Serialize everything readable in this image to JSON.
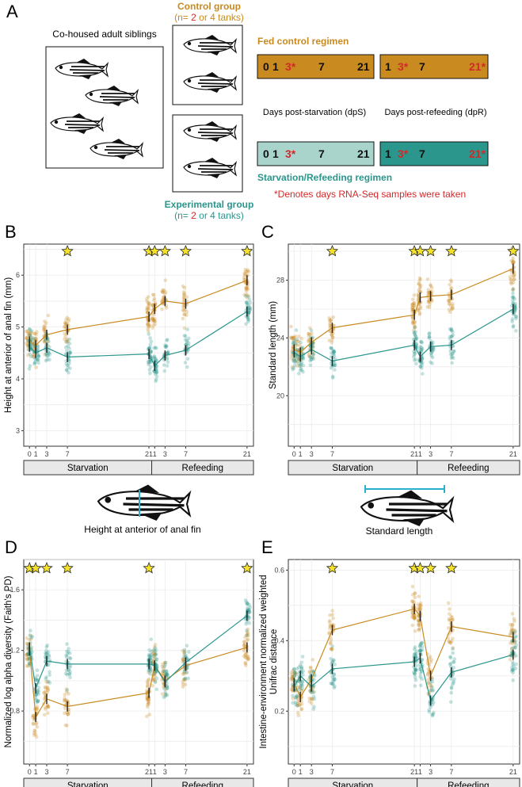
{
  "colors": {
    "control": "#c98a1f",
    "experimental": "#2a968c",
    "exp_light": "#a8d4cc",
    "experimental_dark": "#22877e",
    "red": "#d22a2a",
    "star": "#f3e02a",
    "strip": "#e8e8e8"
  },
  "panelA": {
    "letter": "A",
    "cohoused_label": "Co-housed adult siblings",
    "control_title": "Control group",
    "control_n_prefix": "(n= ",
    "control_n_red": "2",
    "control_n_suffix": " or 4 tanks)",
    "exp_title": "Experimental group",
    "exp_n_prefix": "(n= ",
    "exp_n_red": "2",
    "exp_n_suffix": " or 4 tanks)",
    "fed_regimen": "Fed control regimen",
    "starv_regimen": "Starvation/Refeeding regimen",
    "dps_label": "Days post-starvation (dpS)",
    "dpr_label": "Days post-refeeding (dpR)",
    "note": "*Denotes days RNA-Seq samples were taken",
    "bar_days_1": [
      "0",
      "1",
      "3*",
      "7",
      "21"
    ],
    "bar_days_2": [
      "1",
      "3*",
      "7",
      "21*"
    ]
  },
  "strip_labels": [
    "Starvation",
    "Refeeding"
  ],
  "x_ticks": [
    "0",
    "1",
    "3",
    "7",
    "21",
    "1",
    "3",
    "7",
    "21"
  ],
  "fish_labels": {
    "height": "Height at anterior of anal fin",
    "length": "Standard length"
  },
  "chart_data": [
    {
      "panel": "B",
      "type": "line",
      "ylabel": "Height at anterior of anal fin (mm)",
      "yticks": [
        3,
        4,
        5,
        6
      ],
      "ylim": [
        2.7,
        6.6
      ],
      "x": [
        "0 dpS",
        "1 dpS",
        "3 dpS",
        "7 dpS",
        "21 dpS",
        "1 dpR",
        "3 dpR",
        "7 dpR",
        "21 dpR"
      ],
      "stars_at": [
        3,
        4,
        5,
        6,
        7,
        8
      ],
      "series": [
        {
          "name": "Control",
          "values": [
            4.72,
            4.65,
            4.85,
            4.95,
            5.2,
            5.35,
            5.5,
            5.45,
            5.9
          ]
        },
        {
          "name": "Experimental",
          "values": [
            4.62,
            4.5,
            4.6,
            4.42,
            4.48,
            4.25,
            4.45,
            4.55,
            5.3
          ]
        }
      ]
    },
    {
      "panel": "C",
      "type": "line",
      "ylabel": "Standard length (mm)",
      "yticks": [
        20,
        24,
        28
      ],
      "ylim": [
        16.5,
        30.5
      ],
      "x": [
        "0 dpS",
        "1 dpS",
        "3 dpS",
        "7 dpS",
        "21 dpS",
        "1 dpR",
        "3 dpR",
        "7 dpR",
        "21 dpR"
      ],
      "stars_at": [
        3,
        4,
        5,
        6,
        7,
        8
      ],
      "series": [
        {
          "name": "Control",
          "values": [
            23.2,
            23.0,
            23.7,
            24.7,
            25.6,
            26.8,
            26.9,
            27.0,
            28.8
          ]
        },
        {
          "name": "Experimental",
          "values": [
            23.0,
            22.7,
            23.2,
            22.4,
            23.5,
            22.7,
            23.4,
            23.5,
            26.0
          ]
        }
      ]
    },
    {
      "panel": "D",
      "type": "line",
      "ylabel": "Normalized log alpha diversity (Faith's PD)",
      "yticks": [
        0.8,
        1.2,
        1.6
      ],
      "ylim": [
        0.45,
        1.8
      ],
      "x": [
        "0 dpS",
        "1 dpS",
        "3 dpS",
        "7 dpS",
        "21 dpS",
        "1 dpR",
        "3 dpR",
        "7 dpR",
        "21 dpR"
      ],
      "stars_at": [
        0,
        1,
        2,
        3,
        4,
        8
      ],
      "series": [
        {
          "name": "Control",
          "values": [
            1.2,
            0.76,
            0.88,
            0.83,
            0.92,
            1.1,
            1.0,
            1.1,
            1.22
          ]
        },
        {
          "name": "Experimental",
          "values": [
            1.22,
            0.95,
            1.13,
            1.11,
            1.11,
            1.1,
            0.99,
            1.12,
            1.43
          ]
        }
      ]
    },
    {
      "panel": "E",
      "type": "line",
      "ylabel": "Intestine-environment normalized weighted Unifrac distance",
      "yticks": [
        0.2,
        0.4,
        0.6
      ],
      "ylim": [
        0.05,
        0.63
      ],
      "x": [
        "0 dpS",
        "1 dpS",
        "3 dpS",
        "7 dpS",
        "21 dpS",
        "1 dpR",
        "3 dpR",
        "7 dpR",
        "21 dpR"
      ],
      "stars_at": [
        3,
        4,
        5,
        6,
        7
      ],
      "series": [
        {
          "name": "Control",
          "values": [
            0.28,
            0.24,
            0.29,
            0.43,
            0.49,
            0.47,
            0.3,
            0.44,
            0.41
          ]
        },
        {
          "name": "Experimental",
          "values": [
            0.27,
            0.3,
            0.27,
            0.32,
            0.34,
            0.35,
            0.23,
            0.31,
            0.36
          ]
        }
      ]
    }
  ]
}
